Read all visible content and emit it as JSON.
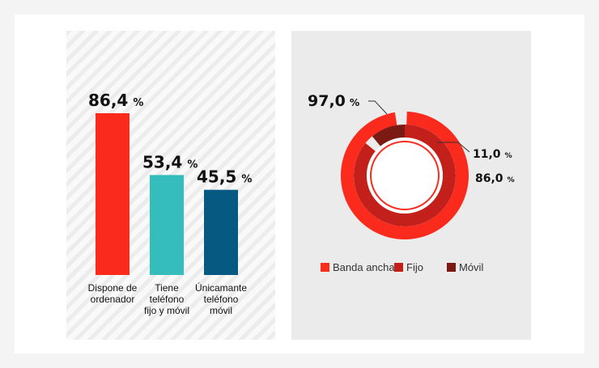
{
  "chart_data": [
    {
      "type": "bar",
      "categories": [
        "Dispone de ordenador",
        "Tiene teléfono fijo y móvil",
        "Únicamante teléfono móvil"
      ],
      "category_lines": [
        [
          "Dispone de",
          "ordenador"
        ],
        [
          "Tiene",
          "teléfono",
          "fijo y móvil"
        ],
        [
          "Únicamante",
          "teléfono",
          "móvil"
        ]
      ],
      "values": [
        86.4,
        53.4,
        45.5
      ],
      "value_labels": [
        "86,4",
        "53,4",
        "45,5"
      ],
      "unit": "%",
      "colors": [
        "#fa2a1c",
        "#35bcbc",
        "#065a82"
      ],
      "ylim": [
        0,
        100
      ]
    },
    {
      "type": "pie",
      "variant": "nested-donut",
      "series": [
        {
          "name": "Banda ancha",
          "value": 97.0,
          "label": "97,0",
          "color": "#fa2a1c"
        },
        {
          "name": "Fijo",
          "value": 86.0,
          "label": "86,0",
          "color": "#c4201b"
        },
        {
          "name": "Móvil",
          "value": 11.0,
          "label": "11,0",
          "color": "#7a1a12"
        }
      ],
      "unit": "%",
      "legend_position": "bottom"
    }
  ]
}
